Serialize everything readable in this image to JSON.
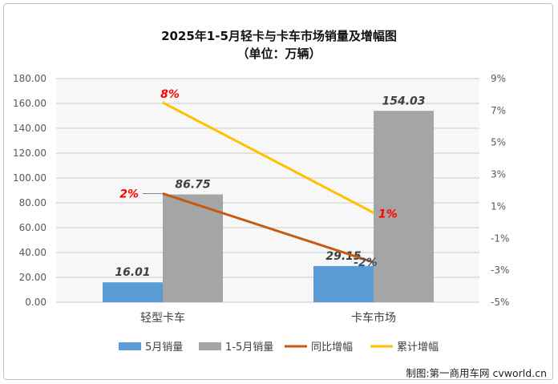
{
  "chart_data": {
    "type": "bar",
    "title": "2025年1-5月轻卡与卡车市场销量及增幅图",
    "subtitle": "（单位：万辆）",
    "categories": [
      "轻型卡车",
      "卡车市场"
    ],
    "series": [
      {
        "name": "5月销量",
        "kind": "bar",
        "axis": "left",
        "color": "#5b9bd5",
        "values": [
          16.01,
          29.15
        ],
        "labels": [
          "16.01",
          "29.15"
        ]
      },
      {
        "name": "1-5月销量",
        "kind": "bar",
        "axis": "left",
        "color": "#a5a5a5",
        "values": [
          86.75,
          154.03
        ],
        "labels": [
          "86.75",
          "154.03"
        ]
      },
      {
        "name": "同比增幅",
        "kind": "line",
        "axis": "right",
        "color": "#c55a11",
        "values": [
          1.8,
          -2.5
        ],
        "labels": [
          "2%",
          "-2%"
        ],
        "label_colors": [
          "#ff0000",
          "#44546a"
        ]
      },
      {
        "name": "累计增幅",
        "kind": "line",
        "axis": "right",
        "color": "#ffc000",
        "values": [
          7.5,
          0.6
        ],
        "labels": [
          "8%",
          "1%"
        ],
        "label_colors": [
          "#ff0000",
          "#ff0000"
        ]
      }
    ],
    "left_axis": {
      "ylim": [
        0,
        180
      ],
      "ticks": [
        "0.00",
        "20.00",
        "40.00",
        "60.00",
        "80.00",
        "100.00",
        "120.00",
        "140.00",
        "160.00",
        "180.00"
      ]
    },
    "right_axis": {
      "ylim": [
        -5,
        9
      ],
      "ticks": [
        "-5%",
        "-3%",
        "-1%",
        "1%",
        "3%",
        "5%",
        "7%",
        "9%"
      ]
    },
    "grid": true,
    "legend": "bottom"
  },
  "credit": "制图:第一商用车网 cvworld.cn"
}
